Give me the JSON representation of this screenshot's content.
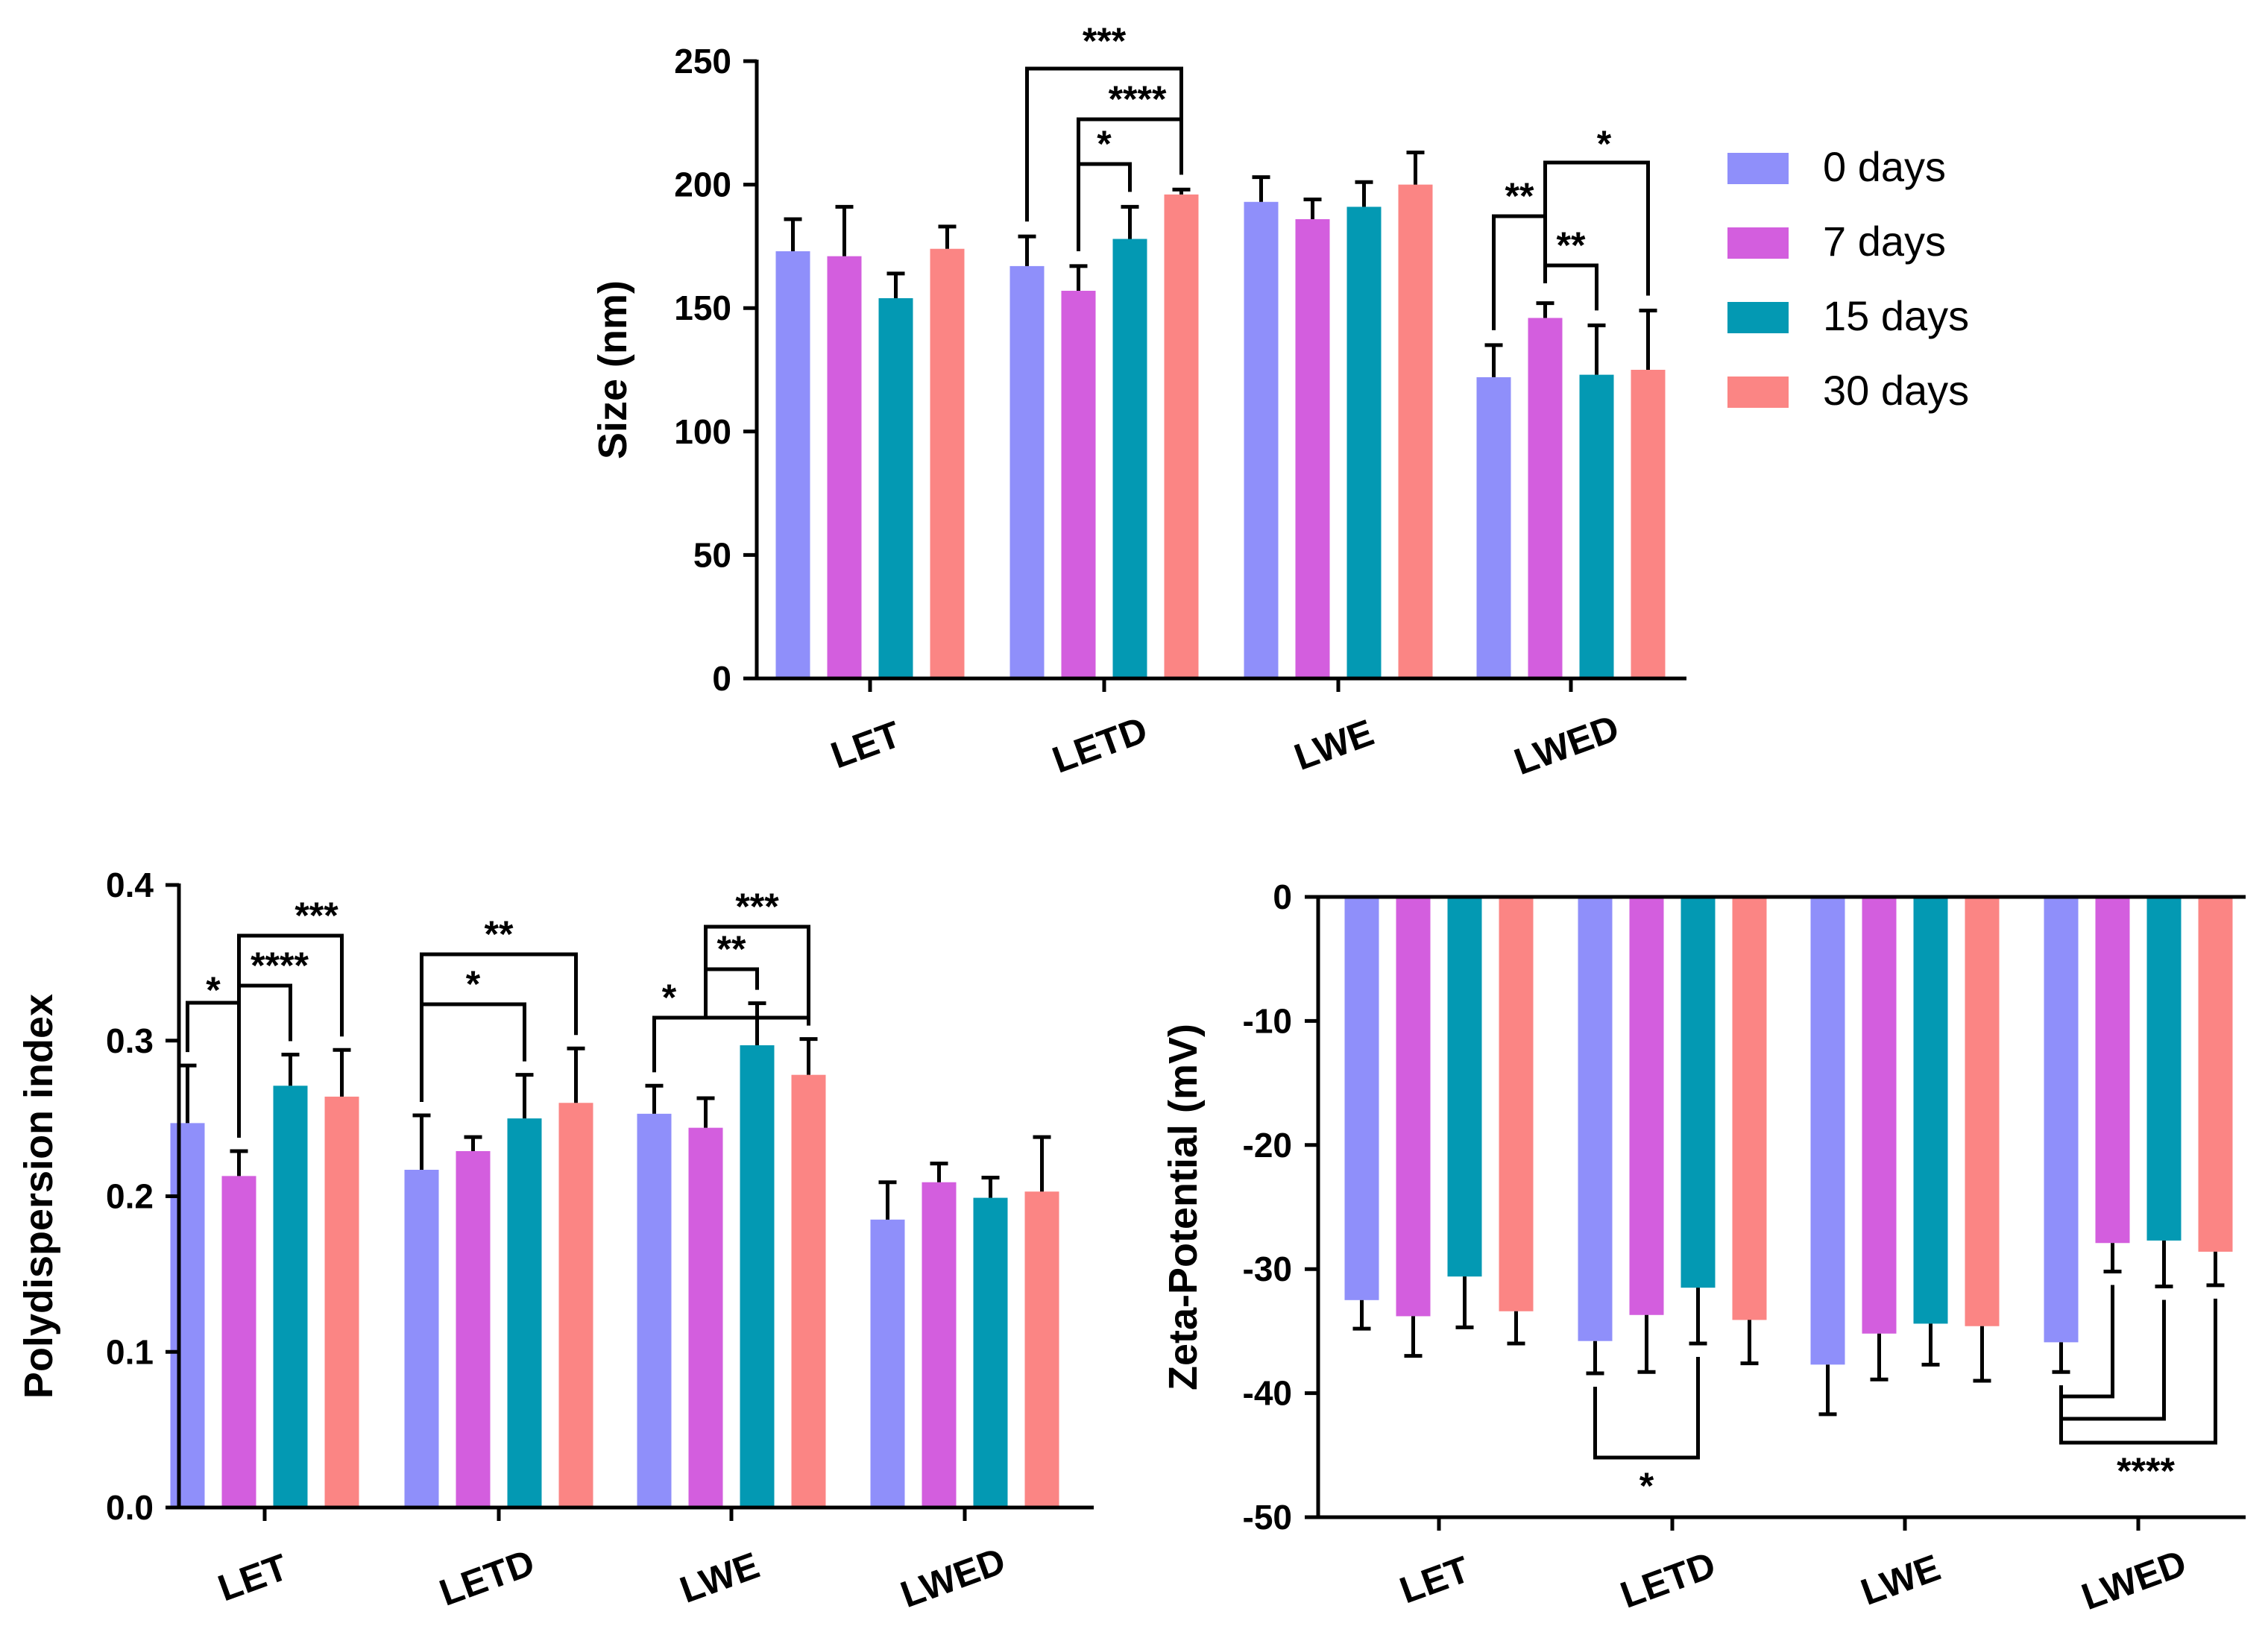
{
  "chart_data": [
    {
      "id": "size",
      "type": "bar",
      "ylabel": "Size (nm)",
      "ylim": [
        0,
        250
      ],
      "yticks": [
        0,
        50,
        100,
        150,
        200,
        250
      ],
      "tick_labels": [
        "0",
        "50",
        "100",
        "150",
        "200",
        "250"
      ],
      "categories": [
        "LET",
        "LETD",
        "LWE",
        "LWED"
      ],
      "series": [
        {
          "name": "0 days",
          "values": [
            173,
            167,
            193,
            122
          ],
          "errors": [
            13,
            12,
            10,
            13
          ]
        },
        {
          "name": "7 days",
          "values": [
            171,
            157,
            186,
            146
          ],
          "errors": [
            20,
            10,
            8,
            6
          ]
        },
        {
          "name": "15 days",
          "values": [
            154,
            178,
            191,
            123
          ],
          "errors": [
            10,
            13,
            10,
            20
          ]
        },
        {
          "name": "30 days",
          "values": [
            174,
            196,
            200,
            125
          ],
          "errors": [
            9,
            2,
            13,
            24
          ]
        }
      ],
      "legend": {
        "position": "right",
        "labels": [
          "0 days",
          "7 days",
          "15 days",
          "30 days"
        ]
      },
      "significance": [
        {
          "label": "***",
          "category": "LETD",
          "from": 0,
          "to": 3
        },
        {
          "label": "****",
          "category": "LETD",
          "from": 1,
          "to": 3
        },
        {
          "label": "*",
          "category": "LETD",
          "from": 1,
          "to": 2
        },
        {
          "label": "**",
          "category": "LWED",
          "from": 0,
          "to": 1
        },
        {
          "label": "*",
          "category": "LWED",
          "from": 1,
          "to": 3
        },
        {
          "label": "**",
          "category": "LWED",
          "from": 1,
          "to": 2
        }
      ]
    },
    {
      "id": "pdi",
      "type": "bar",
      "ylabel": "Polydispersion index",
      "ylim": [
        0,
        0.4
      ],
      "yticks": [
        0,
        0.1,
        0.2,
        0.3,
        0.4
      ],
      "tick_labels": [
        "0.0",
        "0.1",
        "0.2",
        "0.3",
        "0.4"
      ],
      "categories": [
        "LET",
        "LETD",
        "LWE",
        "LWED"
      ],
      "series": [
        {
          "name": "0 days",
          "values": [
            0.247,
            0.217,
            0.253,
            0.185
          ],
          "errors": [
            0.037,
            0.035,
            0.018,
            0.024
          ]
        },
        {
          "name": "7 days",
          "values": [
            0.213,
            0.229,
            0.244,
            0.209
          ],
          "errors": [
            0.016,
            0.009,
            0.019,
            0.012
          ]
        },
        {
          "name": "15 days",
          "values": [
            0.271,
            0.25,
            0.297,
            0.199
          ],
          "errors": [
            0.02,
            0.028,
            0.027,
            0.013
          ]
        },
        {
          "name": "30 days",
          "values": [
            0.264,
            0.26,
            0.278,
            0.203
          ],
          "errors": [
            0.03,
            0.035,
            0.023,
            0.035
          ]
        }
      ],
      "significance": [
        {
          "label": "*",
          "category": "LET",
          "from": 0,
          "to": 1
        },
        {
          "label": "****",
          "category": "LET",
          "from": 1,
          "to": 2
        },
        {
          "label": "***",
          "category": "LET",
          "from": 1,
          "to": 3
        },
        {
          "label": "*",
          "category": "LETD",
          "from": 0,
          "to": 2
        },
        {
          "label": "**",
          "category": "LETD",
          "from": 0,
          "to": 3
        },
        {
          "label": "*",
          "category": "LWE",
          "from": 0,
          "to": 3
        },
        {
          "label": "**",
          "category": "LWE",
          "from": 1,
          "to": 2
        },
        {
          "label": "***",
          "category": "LWE",
          "from": 1,
          "to": 3
        }
      ]
    },
    {
      "id": "zeta",
      "type": "bar",
      "ylabel": "Zeta-Potential (mV)",
      "ylim": [
        -50,
        0
      ],
      "yticks": [
        0,
        -10,
        -20,
        -30,
        -40,
        -50
      ],
      "tick_labels": [
        "0",
        "-10",
        "-20",
        "-30",
        "-40",
        "-50"
      ],
      "categories": [
        "LET",
        "LETD",
        "LWE",
        "LWED"
      ],
      "series": [
        {
          "name": "0 days",
          "values": [
            -32.5,
            -35.8,
            -37.7,
            -35.9
          ],
          "errors": [
            2.3,
            2.6,
            4.0,
            2.4
          ]
        },
        {
          "name": "7 days",
          "values": [
            -33.8,
            -33.7,
            -35.2,
            -27.9
          ],
          "errors": [
            3.2,
            4.6,
            3.7,
            2.3
          ]
        },
        {
          "name": "15 days",
          "values": [
            -30.6,
            -31.5,
            -34.4,
            -27.7
          ],
          "errors": [
            4.1,
            4.5,
            3.3,
            3.7
          ]
        },
        {
          "name": "30 days",
          "values": [
            -33.4,
            -34.1,
            -34.6,
            -28.6
          ],
          "errors": [
            2.6,
            3.5,
            4.4,
            2.7
          ]
        }
      ],
      "significance": [
        {
          "label": "*",
          "category": "LETD",
          "from": 0,
          "to": 2
        },
        {
          "label": "****",
          "category": "LWED",
          "from": 0,
          "to": 3
        }
      ]
    }
  ]
}
